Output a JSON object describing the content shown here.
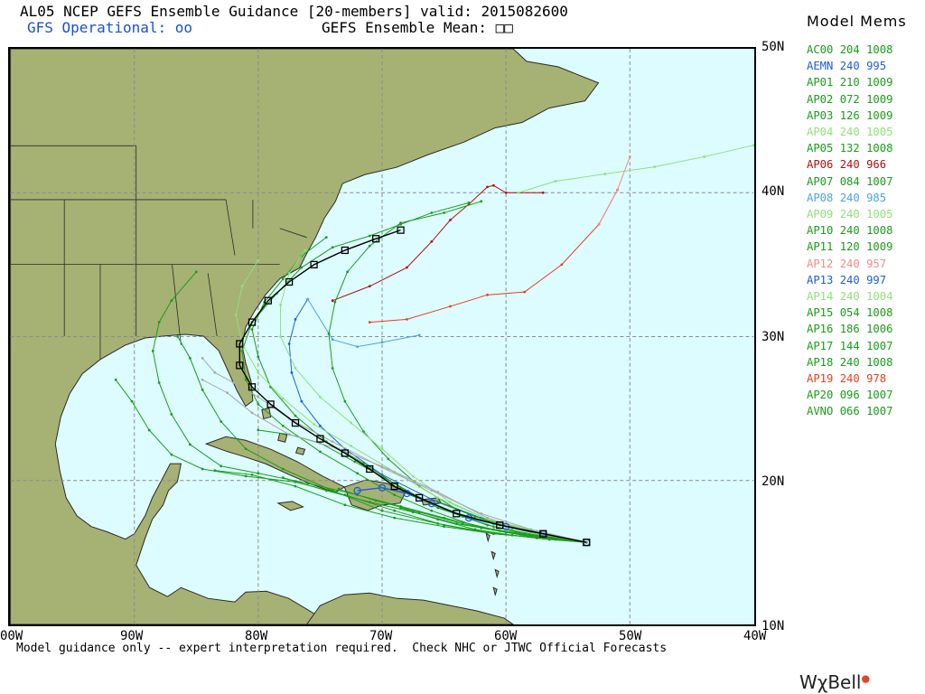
{
  "header": {
    "title": "AL05 NCEP GEFS Ensemble Guidance [20-members] valid: 2015082600",
    "gfs_operational": "GFS Operational: ",
    "gfs_operational_marker": "oo",
    "ensemble_mean": "GEFS Ensemble Mean: ",
    "ensemble_mean_marker": "□□"
  },
  "map": {
    "lon_range": [
      -100,
      -40
    ],
    "lat_range": [
      10,
      50
    ],
    "lat_labels": [
      "50N",
      "40N",
      "30N",
      "20N",
      "10N"
    ],
    "lon_labels": [
      "00W",
      "90W",
      "80W",
      "70W",
      "60W",
      "50W",
      "40W"
    ],
    "ocean_color": "#ddfcff",
    "land_color": "#a6b174",
    "grid_color": "#8a8a8a"
  },
  "legend": {
    "title": "Model Mems",
    "members": [
      {
        "id": "AC00",
        "hour": "204",
        "pressure": "1008",
        "color": "#1a9c1a"
      },
      {
        "id": "AEMN",
        "hour": "240",
        "pressure": "995",
        "color": "#1e5fd0"
      },
      {
        "id": "AP01",
        "hour": "210",
        "pressure": "1009",
        "color": "#1a9c1a"
      },
      {
        "id": "AP02",
        "hour": "072",
        "pressure": "1009",
        "color": "#1a9c1a"
      },
      {
        "id": "AP03",
        "hour": "126",
        "pressure": "1009",
        "color": "#1a9c1a"
      },
      {
        "id": "AP04",
        "hour": "240",
        "pressure": "1005",
        "color": "#8fe07a"
      },
      {
        "id": "AP05",
        "hour": "132",
        "pressure": "1008",
        "color": "#1a9c1a"
      },
      {
        "id": "AP06",
        "hour": "240",
        "pressure": "966",
        "color": "#b01010"
      },
      {
        "id": "AP07",
        "hour": "084",
        "pressure": "1007",
        "color": "#1a9c1a"
      },
      {
        "id": "AP08",
        "hour": "240",
        "pressure": "985",
        "color": "#4aa3e8"
      },
      {
        "id": "AP09",
        "hour": "240",
        "pressure": "1005",
        "color": "#8fe07a"
      },
      {
        "id": "AP10",
        "hour": "240",
        "pressure": "1008",
        "color": "#1a9c1a"
      },
      {
        "id": "AP11",
        "hour": "120",
        "pressure": "1009",
        "color": "#1a9c1a"
      },
      {
        "id": "AP12",
        "hour": "240",
        "pressure": "957",
        "color": "#f08a8a"
      },
      {
        "id": "AP13",
        "hour": "240",
        "pressure": "997",
        "color": "#1e5fd0"
      },
      {
        "id": "AP14",
        "hour": "240",
        "pressure": "1004",
        "color": "#8fe07a"
      },
      {
        "id": "AP15",
        "hour": "054",
        "pressure": "1008",
        "color": "#1a9c1a"
      },
      {
        "id": "AP16",
        "hour": "186",
        "pressure": "1006",
        "color": "#1a9c1a"
      },
      {
        "id": "AP17",
        "hour": "144",
        "pressure": "1007",
        "color": "#1a9c1a"
      },
      {
        "id": "AP18",
        "hour": "240",
        "pressure": "1008",
        "color": "#1a9c1a"
      },
      {
        "id": "AP19",
        "hour": "240",
        "pressure": "978",
        "color": "#e8401a"
      },
      {
        "id": "AP20",
        "hour": "096",
        "pressure": "1007",
        "color": "#1a9c1a"
      },
      {
        "id": "AVNO",
        "hour": "066",
        "pressure": "1007",
        "color": "#1a9c1a"
      }
    ]
  },
  "tracks": [
    {
      "member": "AEMN",
      "color": "#000000",
      "marker": "square",
      "points": [
        [
          -53.5,
          15.7
        ],
        [
          -57,
          16.3
        ],
        [
          -60.5,
          16.9
        ],
        [
          -64,
          17.7
        ],
        [
          -67,
          18.8
        ],
        [
          -69,
          19.6
        ],
        [
          -71,
          20.8
        ],
        [
          -73,
          21.9
        ],
        [
          -75,
          22.9
        ],
        [
          -77,
          24.0
        ],
        [
          -79,
          25.3
        ],
        [
          -80.5,
          26.5
        ],
        [
          -81.5,
          28.0
        ],
        [
          -81.5,
          29.5
        ],
        [
          -80.5,
          31.0
        ],
        [
          -79.2,
          32.5
        ],
        [
          -77.5,
          33.8
        ],
        [
          -75.5,
          35.0
        ],
        [
          -73.0,
          36.0
        ],
        [
          -70.5,
          36.8
        ],
        [
          -68.5,
          37.4
        ]
      ]
    },
    {
      "member": "AVNO",
      "color": "#1e5fd0",
      "marker": "circle",
      "points": [
        [
          -53.5,
          15.7
        ],
        [
          -57,
          16.3
        ],
        [
          -60,
          16.8
        ],
        [
          -63,
          17.4
        ],
        [
          -66,
          18.4
        ],
        [
          -68,
          19.1
        ],
        [
          -70,
          19.5
        ],
        [
          -72,
          19.3
        ]
      ]
    },
    {
      "member": "AP06",
      "color": "#b01010",
      "marker": "dot",
      "points": [
        [
          -74,
          32.5
        ],
        [
          -71,
          33.5
        ],
        [
          -68,
          34.8
        ],
        [
          -66,
          36.6
        ],
        [
          -64.5,
          38.1
        ],
        [
          -63,
          39.2
        ],
        [
          -61.5,
          40.4
        ],
        [
          -61.0,
          40.5
        ],
        [
          -60,
          40.0
        ],
        [
          -57,
          40.0
        ]
      ]
    },
    {
      "member": "AP19",
      "color": "#e8401a",
      "marker": "dot",
      "points": [
        [
          -71,
          31.0
        ],
        [
          -68,
          31.2
        ],
        [
          -64.5,
          32.1
        ],
        [
          -61.5,
          32.9
        ],
        [
          -58.5,
          33.1
        ],
        [
          -55.5,
          35.0
        ],
        [
          -52.5,
          37.8
        ],
        [
          -51,
          40.2
        ]
      ]
    },
    {
      "member": "AP12",
      "color": "#f08a8a",
      "marker": "dot",
      "points": [
        [
          -52.5,
          37.8
        ],
        [
          -51,
          40.2
        ],
        [
          -50,
          42.5
        ]
      ]
    },
    {
      "member": "AP04",
      "color": "#8fe07a",
      "marker": "dot",
      "points": [
        [
          -59,
          40.0
        ],
        [
          -56,
          40.8
        ],
        [
          -52,
          41.3
        ],
        [
          -48,
          41.8
        ],
        [
          -44,
          42.5
        ],
        [
          -40,
          43.3
        ],
        [
          -37,
          44.0
        ]
      ]
    },
    {
      "member": "AP13",
      "color": "#1e5fd0",
      "marker": "dot",
      "points": [
        [
          -53.5,
          15.7
        ],
        [
          -58,
          16.5
        ],
        [
          -62,
          17.4
        ],
        [
          -66,
          18.7
        ],
        [
          -70,
          20.4
        ],
        [
          -73,
          22.2
        ],
        [
          -75,
          23.8
        ],
        [
          -76.5,
          25.5
        ],
        [
          -77.3,
          27.5
        ],
        [
          -77.5,
          29.5
        ],
        [
          -77,
          31.2
        ],
        [
          -76,
          32.6
        ]
      ]
    },
    {
      "member": "AP08",
      "color": "#4aa3e8",
      "marker": "dot",
      "points": [
        [
          -76,
          32.6
        ],
        [
          -74,
          29.8
        ],
        [
          -72,
          29.3
        ],
        [
          -70,
          29.6
        ],
        [
          -67,
          30.1
        ]
      ]
    },
    {
      "member": "AP10",
      "color": "#1a9c1a",
      "marker": "dot",
      "points": [
        [
          -53.5,
          15.7
        ],
        [
          -58,
          16.1
        ],
        [
          -62,
          16.7
        ],
        [
          -66,
          17.9
        ],
        [
          -69,
          19.0
        ],
        [
          -72,
          20.5
        ],
        [
          -75,
          22.0
        ],
        [
          -78,
          23.8
        ],
        [
          -80,
          25.3
        ],
        [
          -81,
          27.0
        ],
        [
          -81.3,
          29.0
        ],
        [
          -80.5,
          31.0
        ],
        [
          -78.5,
          33.0
        ],
        [
          -76.5,
          34.8
        ],
        [
          -74,
          36.2
        ],
        [
          -71,
          37.0
        ],
        [
          -68.5,
          37.8
        ],
        [
          -66,
          38.6
        ],
        [
          -63,
          39.3
        ]
      ]
    },
    {
      "member": "AP18",
      "color": "#1a9c1a",
      "marker": "dot",
      "points": [
        [
          -53.5,
          15.7
        ],
        [
          -57,
          16.1
        ],
        [
          -61,
          16.6
        ],
        [
          -65,
          17.4
        ],
        [
          -68.5,
          18.2
        ],
        [
          -72,
          19.0
        ],
        [
          -76,
          19.8
        ],
        [
          -80,
          20.5
        ],
        [
          -83,
          21.0
        ],
        [
          -85.5,
          22.5
        ],
        [
          -87,
          24.6
        ],
        [
          -88,
          26.8
        ],
        [
          -88.5,
          29.0
        ],
        [
          -88,
          31.0
        ],
        [
          -87,
          32.5
        ],
        [
          -85,
          34.5
        ]
      ]
    },
    {
      "member": "AC00",
      "color": "#1a9c1a",
      "marker": "dot",
      "points": [
        [
          -53.5,
          15.7
        ],
        [
          -57.5,
          16.0
        ],
        [
          -61.5,
          16.4
        ],
        [
          -65.5,
          17.0
        ],
        [
          -70,
          17.9
        ],
        [
          -74,
          19.3
        ],
        [
          -78,
          20.8
        ],
        [
          -81,
          22.2
        ],
        [
          -83,
          24.1
        ],
        [
          -84.5,
          26.3
        ],
        [
          -85.5,
          28.5
        ],
        [
          -86.5,
          30.0
        ]
      ]
    },
    {
      "member": "AP01",
      "color": "#1a9c1a",
      "marker": "dot",
      "points": [
        [
          -53.5,
          15.7
        ],
        [
          -57,
          16.4
        ],
        [
          -61,
          17.0
        ],
        [
          -65,
          18.0
        ],
        [
          -68.5,
          19.5
        ],
        [
          -71.5,
          21.2
        ],
        [
          -74.5,
          22.7
        ],
        [
          -77,
          24.5
        ],
        [
          -79,
          26.5
        ],
        [
          -80,
          28.6
        ],
        [
          -80.5,
          30.5
        ],
        [
          -79.5,
          32.4
        ],
        [
          -78,
          34.0
        ],
        [
          -76.5,
          35.6
        ],
        [
          -74.5,
          36.9
        ]
      ]
    },
    {
      "member": "AP16",
      "color": "#1a9c1a",
      "marker": "dot",
      "points": [
        [
          -53.5,
          15.7
        ],
        [
          -57,
          16.2
        ],
        [
          -60.5,
          16.9
        ],
        [
          -64,
          18.0
        ],
        [
          -67,
          19.6
        ],
        [
          -69.5,
          21.5
        ],
        [
          -71.5,
          23.4
        ],
        [
          -73,
          25.5
        ],
        [
          -74,
          27.8
        ],
        [
          -74.3,
          30.2
        ],
        [
          -73.8,
          32.4
        ],
        [
          -72.8,
          34.5
        ],
        [
          -71,
          36.3
        ],
        [
          -68.5,
          37.9
        ],
        [
          -65,
          38.6
        ],
        [
          -62,
          39.4
        ]
      ]
    },
    {
      "member": "AP17",
      "color": "#1a9c1a",
      "marker": "dot",
      "points": [
        [
          -53.5,
          15.7
        ],
        [
          -57,
          16.0
        ],
        [
          -61,
          16.3
        ],
        [
          -65,
          16.9
        ],
        [
          -69,
          17.9
        ],
        [
          -73,
          19.0
        ],
        [
          -77,
          19.9
        ],
        [
          -81,
          20.3
        ],
        [
          -84.5,
          20.8
        ],
        [
          -87,
          21.8
        ],
        [
          -88.8,
          23.5
        ],
        [
          -90.2,
          25.5
        ],
        [
          -91.5,
          27.0
        ]
      ]
    },
    {
      "member": "AP09",
      "color": "#8fe07a",
      "marker": "dot",
      "points": [
        [
          -53.5,
          15.7
        ],
        [
          -57.5,
          16.5
        ],
        [
          -61.5,
          17.3
        ],
        [
          -65.5,
          18.8
        ],
        [
          -69,
          20.6
        ],
        [
          -72.5,
          22.4
        ],
        [
          -75.5,
          23.9
        ],
        [
          -78,
          25.7
        ],
        [
          -80,
          27.5
        ],
        [
          -81.3,
          29.5
        ],
        [
          -81.8,
          31.5
        ],
        [
          -81.3,
          33.5
        ],
        [
          -80,
          35.3
        ]
      ]
    },
    {
      "member": "AP14",
      "color": "#8fe07a",
      "marker": "dot",
      "points": [
        [
          -53.5,
          15.7
        ],
        [
          -57,
          16.4
        ],
        [
          -61,
          17.1
        ],
        [
          -64.5,
          18.5
        ],
        [
          -67.5,
          20.3
        ],
        [
          -70,
          22.2
        ],
        [
          -72.5,
          24.0
        ],
        [
          -75,
          25.8
        ],
        [
          -77,
          27.8
        ],
        [
          -78.2,
          30.0
        ],
        [
          -78.2,
          32.2
        ],
        [
          -77.5,
          34.4
        ],
        [
          -76.2,
          36.0
        ]
      ]
    },
    {
      "member": "AP03",
      "color": "#1a9c1a",
      "marker": "dot",
      "points": [
        [
          -53.5,
          15.7
        ],
        [
          -57,
          16.0
        ],
        [
          -61,
          16.3
        ],
        [
          -65,
          16.8
        ],
        [
          -69,
          17.4
        ],
        [
          -73,
          18.3
        ],
        [
          -77,
          19.6
        ],
        [
          -80.5,
          20.4
        ],
        [
          -83.5,
          20.7
        ]
      ]
    },
    {
      "member": "AP05",
      "color": "#1a9c1a",
      "marker": "dot",
      "points": [
        [
          -53.5,
          15.7
        ],
        [
          -57.5,
          16.2
        ],
        [
          -61.5,
          16.9
        ],
        [
          -65.5,
          18.1
        ],
        [
          -69,
          19.8
        ],
        [
          -72.2,
          21.3
        ],
        [
          -75,
          22.6
        ],
        [
          -77.5,
          23.2
        ],
        [
          -80,
          23.5
        ]
      ]
    },
    {
      "member": "AP11",
      "color": "#1a9c1a",
      "marker": "dot",
      "points": [
        [
          -53.5,
          15.7
        ],
        [
          -57,
          16.1
        ],
        [
          -60.5,
          16.5
        ],
        [
          -64,
          17.0
        ],
        [
          -67.5,
          17.8
        ],
        [
          -71,
          18.5
        ],
        [
          -74.5,
          19.3
        ],
        [
          -78,
          20.2
        ]
      ]
    },
    {
      "member": "AP07",
      "color": "#1a9c1a",
      "marker": "dot",
      "points": [
        [
          -53.5,
          15.7
        ],
        [
          -56.5,
          15.9
        ],
        [
          -59.5,
          16.2
        ],
        [
          -62.5,
          16.6
        ],
        [
          -65.5,
          17.3
        ],
        [
          -68.5,
          18.1
        ]
      ]
    },
    {
      "member": "AP20",
      "color": "#1a9c1a",
      "marker": "dot",
      "points": [
        [
          -53.5,
          15.7
        ],
        [
          -56.5,
          16.0
        ],
        [
          -60,
          16.4
        ],
        [
          -63.5,
          17.0
        ],
        [
          -67,
          17.8
        ],
        [
          -70.5,
          18.6
        ],
        [
          -73.5,
          19.4
        ]
      ]
    },
    {
      "member": "AP02",
      "color": "#1a9c1a",
      "marker": "dot",
      "points": [
        [
          -53.5,
          15.7
        ],
        [
          -56.5,
          16.1
        ],
        [
          -59.5,
          16.7
        ],
        [
          -62.5,
          17.5
        ],
        [
          -65.5,
          18.5
        ]
      ]
    },
    {
      "member": "AP15",
      "color": "#1a9c1a",
      "marker": "dot",
      "points": [
        [
          -53.5,
          15.7
        ],
        [
          -56,
          15.9
        ],
        [
          -58.5,
          16.3
        ],
        [
          -61,
          16.8
        ],
        [
          -63.5,
          17.5
        ]
      ]
    },
    {
      "member": "grey-member",
      "color": "#a8a8a8",
      "marker": "dot",
      "points": [
        [
          -53.5,
          15.7
        ],
        [
          -58,
          16.6
        ],
        [
          -62,
          17.7
        ],
        [
          -66,
          19.3
        ],
        [
          -70,
          20.9
        ],
        [
          -74,
          22.7
        ],
        [
          -77.5,
          24.3
        ],
        [
          -80,
          25.8
        ],
        [
          -82,
          26.8
        ],
        [
          -83.5,
          27.5
        ],
        [
          -84.5,
          28.5
        ]
      ]
    },
    {
      "member": "grey-member-2",
      "color": "#a8a8a8",
      "marker": "dot",
      "points": [
        [
          -53.5,
          15.7
        ],
        [
          -57.5,
          16.3
        ],
        [
          -61.5,
          17.4
        ],
        [
          -65.5,
          19.2
        ],
        [
          -69.5,
          20.8
        ],
        [
          -73.5,
          22.2
        ],
        [
          -77.5,
          23.2
        ],
        [
          -80.5,
          24.7
        ],
        [
          -82.5,
          26.1
        ],
        [
          -84.5,
          27.0
        ]
      ]
    }
  ],
  "footer": "Model guidance only -- expert interpretation required.  Check NHC or JTWC Official Forecasts",
  "brand": {
    "name": "WχBell",
    "dot": "●"
  }
}
